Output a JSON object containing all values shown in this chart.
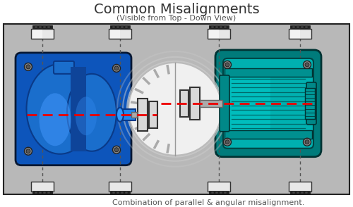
{
  "title": "Common Misalignments",
  "subtitle": "(Visible from Top - Down View)",
  "caption": "Combination of parallel & angular misalignment.",
  "bg_color": "#b8b8b8",
  "border_color": "#222222",
  "fig_bg": "#ffffff",
  "pump_body_color": "#1a6ecc",
  "pump_front_color": "#2288ee",
  "pump_dark": "#0a3a88",
  "pump_top_color": "#3399ff",
  "motor_color": "#00b8b8",
  "motor_dark": "#005555",
  "motor_mid": "#009090",
  "motor_highlight": "#00dddd",
  "shaft_color": "#aaaaaa",
  "shaft_dark": "#777777",
  "coupling_bg": "#e8e8e8",
  "coupling_ring": "#cccccc",
  "red_dash": "#ee0000",
  "mount_color": "#dddddd",
  "mount_border": "#333333",
  "bolt_face": "#666666",
  "title_fontsize": 14,
  "subtitle_fontsize": 8,
  "caption_fontsize": 8
}
